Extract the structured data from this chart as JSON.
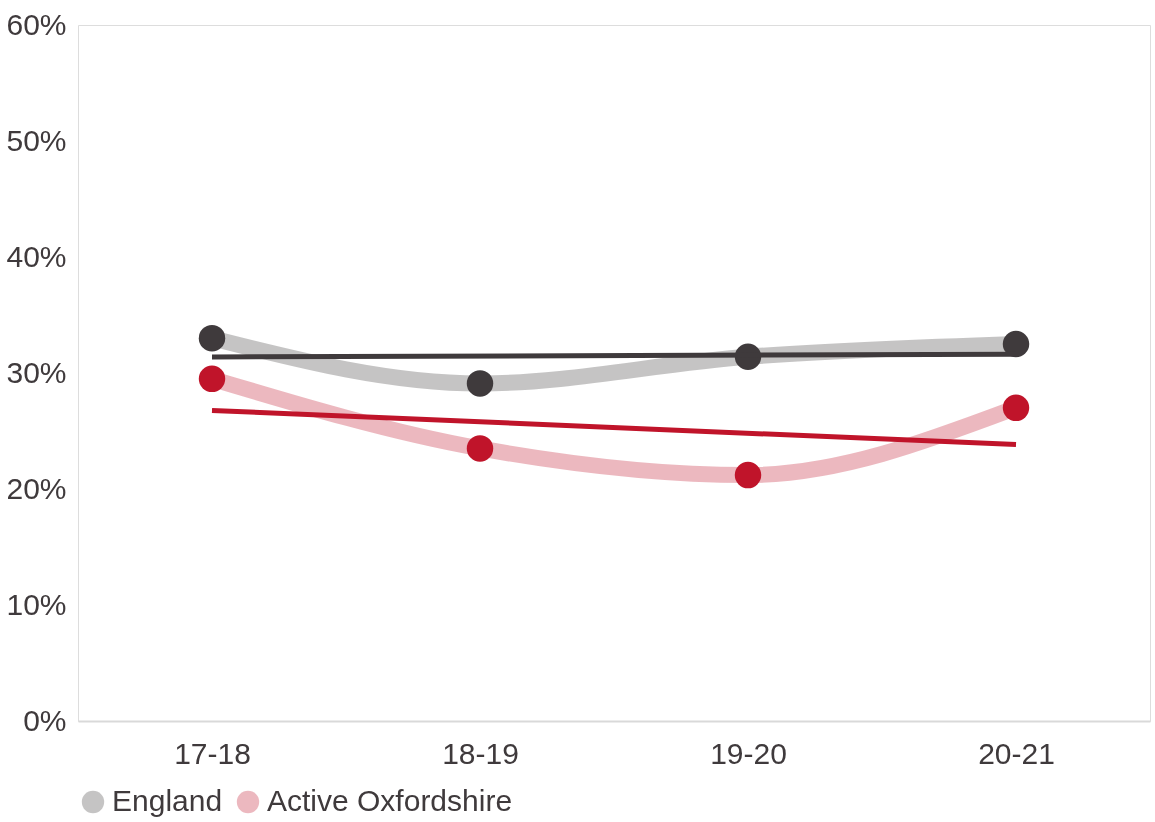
{
  "chart_data": {
    "type": "line",
    "categories": [
      "17-18",
      "18-19",
      "19-20",
      "20-21"
    ],
    "ylim": [
      0,
      60
    ],
    "yticks": [
      {
        "value": 0,
        "label": "0%"
      },
      {
        "value": 10,
        "label": "10%"
      },
      {
        "value": 20,
        "label": "20%"
      },
      {
        "value": 30,
        "label": "30%"
      },
      {
        "value": 40,
        "label": "40%"
      },
      {
        "value": 50,
        "label": "50%"
      },
      {
        "value": 60,
        "label": "60%"
      }
    ],
    "grid": false,
    "legend": "bottom",
    "marker": "circle",
    "line_style": "solid",
    "series": [
      {
        "name": "England",
        "color": "#3f3a3c",
        "values": [
          33.0,
          29.1,
          31.4,
          32.5
        ]
      },
      {
        "name": "Active Oxfordshire",
        "color": "#c0142a",
        "values": [
          29.5,
          23.5,
          21.2,
          27.0
        ]
      },
      {
        "type": "line",
        "marker": "none",
        "color": "#3f3a3c",
        "values": [
          31.38,
          null,
          null,
          31.62
        ]
      },
      {
        "type": "line",
        "marker": "none",
        "color": "#c0142a",
        "values": [
          26.77,
          null,
          null,
          23.83
        ]
      }
    ]
  }
}
